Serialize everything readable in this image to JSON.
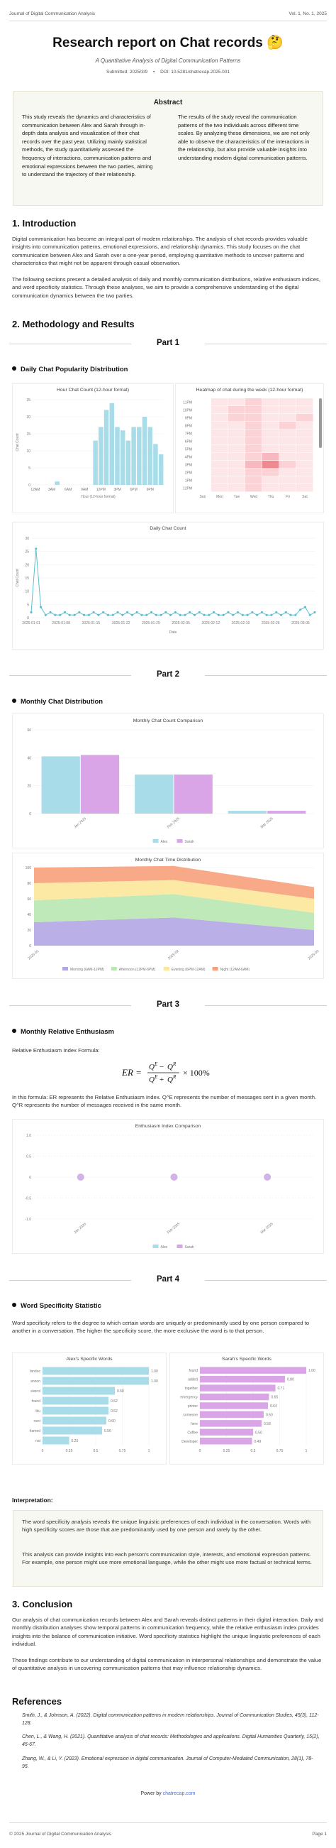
{
  "header": {
    "journal": "Journal of Digital Communication Analysis",
    "volume": "Vol. 1, No. 1, 2025"
  },
  "title": "Research report on Chat records 🤔",
  "subtitle": "A Quantitative Analysis of Digital Communication Patterns",
  "meta": {
    "submitted": "Submitted: 2025/3/9",
    "doi": "DOI: 10.5281/chatrecap.2025.001"
  },
  "abstract": {
    "heading": "Abstract",
    "left": "This study reveals the dynamics and characteristics of communication between Alex and Sarah through in-depth data analysis and visualization of their chat records over the past year. Utilizing mainly statistical methods, the study quantitatively assessed the frequency of interactions, communication patterns and emotional expressions between the two parties, aiming to understand the trajectory of their relationship.",
    "right": "The results of the study reveal the communication patterns of the two individuals across different time scales. By analyzing these dimensions, we are not only able to observe the characteristics of the interactions in the relationship, but also provide valuable insights into understanding modern digital communication patterns."
  },
  "intro": {
    "heading": "1. Introduction",
    "p1": "Digital communication has become an integral part of modern relationships. The analysis of chat records provides valuable insights into communication patterns, emotional expressions, and relationship dynamics. This study focuses on the chat communication between Alex and Sarah over a one-year period, employing quantitative methods to uncover patterns and characteristics that might not be apparent through casual observation.",
    "p2": "The following sections present a detailed analysis of daily and monthly communication distributions, relative enthusiasm indices, and word specificity statistics. Through these analyses, we aim to provide a comprehensive understanding of the digital communication dynamics between the two parties."
  },
  "methods_heading": "2. Methodology and Results",
  "parts": [
    "Part 1",
    "Part 2",
    "Part 3",
    "Part 4"
  ],
  "sections": {
    "daily": "Daily Chat Popularity Distribution",
    "monthly": "Monthly Chat Distribution",
    "enthusiasm": "Monthly Relative Enthusiasm",
    "specificity": "Word Specificity Statistic"
  },
  "chart_data": [
    {
      "type": "bar",
      "title": "Hour Chat Count (12-hour format)",
      "xlabel": "Hour (12-hour format)",
      "ylabel": "Chat Count",
      "ylim": [
        0,
        25
      ],
      "y_ticks": [
        "25",
        "20",
        "15",
        "10",
        "5",
        "0"
      ],
      "x_ticks": [
        "12AM",
        "3AM",
        "6AM",
        "9AM",
        "12PM",
        "3PM",
        "6PM",
        "9PM"
      ],
      "values": [
        0,
        0,
        0,
        0,
        1,
        0,
        0,
        0,
        0,
        0,
        0,
        13,
        17,
        22,
        24,
        17,
        16,
        13,
        17,
        17,
        20,
        17,
        12,
        9
      ],
      "color": "#a8dce8"
    },
    {
      "type": "heatmap",
      "title": "Heatmap of chat during the week (12-hour format)",
      "y_ticks": [
        "11PM",
        "10PM",
        "9PM",
        "8PM",
        "7PM",
        "6PM",
        "5PM",
        "4PM",
        "3PM",
        "2PM",
        "1PM",
        "12PM"
      ],
      "x_ticks": [
        "Sun",
        "Mon",
        "Tue",
        "Wed",
        "Thu",
        "Fri",
        "Sat"
      ],
      "values": [
        [
          0,
          1,
          1,
          2,
          1,
          1,
          1
        ],
        [
          0,
          1,
          2,
          2,
          1,
          1,
          1
        ],
        [
          0,
          1,
          2,
          2,
          1,
          1,
          2
        ],
        [
          0,
          1,
          1,
          2,
          1,
          2,
          1
        ],
        [
          0,
          1,
          1,
          2,
          1,
          1,
          1
        ],
        [
          0,
          1,
          1,
          2,
          1,
          1,
          1
        ],
        [
          0,
          1,
          1,
          2,
          1,
          1,
          1
        ],
        [
          0,
          1,
          1,
          2,
          3,
          1,
          1
        ],
        [
          0,
          1,
          1,
          3,
          4,
          2,
          1
        ],
        [
          0,
          1,
          1,
          2,
          2,
          1,
          1
        ],
        [
          0,
          1,
          1,
          2,
          1,
          1,
          1
        ],
        [
          0,
          1,
          1,
          2,
          1,
          1,
          1
        ]
      ],
      "colors": [
        "#ffffff",
        "#fde6e8",
        "#fbd2d6",
        "#f7b8bf",
        "#ef8990"
      ]
    },
    {
      "type": "line",
      "title": "Daily Chat Count",
      "xlabel": "Date",
      "ylabel": "Chat Count",
      "ylim": [
        0,
        30
      ],
      "y_ticks": [
        "30",
        "25",
        "20",
        "15",
        "10",
        "5",
        "0"
      ],
      "x_ticks": [
        "2025-01-01",
        "2025-01-08",
        "2025-01-15",
        "2025-01-22",
        "2025-01-29",
        "2025-02-05",
        "2025-02-12",
        "2025-02-19",
        "2025-02-26",
        "2025-03-05"
      ],
      "values": [
        2,
        26,
        4,
        1,
        2,
        1,
        1,
        2,
        1,
        1,
        2,
        1,
        1,
        2,
        1,
        2,
        1,
        1,
        2,
        1,
        2,
        1,
        2,
        1,
        1,
        2,
        1,
        1,
        2,
        1,
        2,
        1,
        1,
        2,
        1,
        2,
        1,
        1,
        2,
        1,
        1,
        2,
        1,
        2,
        1,
        1,
        2,
        1,
        2,
        1,
        1,
        2,
        1,
        2,
        1,
        1,
        3,
        4,
        1,
        2
      ],
      "color": "#5bc0d0"
    },
    {
      "type": "bar",
      "title": "Monthly Chat Count Comparison",
      "y_ticks": [
        "60",
        "40",
        "20",
        "0"
      ],
      "categories": [
        "Jan 2025",
        "Feb 2025",
        "Mar 2025"
      ],
      "series": [
        {
          "name": "Alex",
          "values": [
            41,
            28,
            2
          ],
          "color": "#a8dce8"
        },
        {
          "name": "Sarah",
          "values": [
            42,
            28,
            2
          ],
          "color": "#d9a5e6"
        }
      ],
      "ylim": [
        0,
        60
      ]
    },
    {
      "type": "area",
      "title": "Monthly Chat Time Distribution",
      "y_ticks": [
        "100",
        "80",
        "60",
        "40",
        "20",
        "0"
      ],
      "categories": [
        "2025-01",
        "2025-02",
        "2025-03"
      ],
      "series": [
        {
          "name": "Morning (6AM-12PM)",
          "values": [
            30,
            36,
            20
          ],
          "color": "#b3a6e4"
        },
        {
          "name": "Afternoon (12PM-6PM)",
          "values": [
            28,
            30,
            22
          ],
          "color": "#b9e7b3"
        },
        {
          "name": "Evening (6PM-12AM)",
          "values": [
            22,
            18,
            18
          ],
          "color": "#fce79a"
        },
        {
          "name": "Night (12AM-6AM)",
          "values": [
            20,
            18,
            15
          ],
          "color": "#f7a07a"
        }
      ],
      "ylim": [
        0,
        100
      ]
    },
    {
      "type": "scatter",
      "title": "Enthusiasm Index Comparison",
      "y_ticks": [
        "1.0",
        "0.5",
        "0",
        "-0.5",
        "-1.0"
      ],
      "categories": [
        "Jan 2025",
        "Feb 2025",
        "Mar 2025"
      ],
      "series": [
        {
          "name": "Alex",
          "values": [
            0,
            0,
            0
          ],
          "color": "#a8dce8"
        },
        {
          "name": "Sarah",
          "values": [
            0,
            0,
            0
          ],
          "color": "#d9a5e6"
        }
      ],
      "ylim": [
        -1,
        1
      ]
    },
    {
      "type": "bar",
      "title": "Alex's Specific Words",
      "x_ticks": [
        "0",
        "0.25",
        "0.5",
        "0.75",
        "1"
      ],
      "categories": [
        "fandoc",
        "annon",
        "starrol",
        "found",
        "blu",
        "next",
        "framed",
        "nat"
      ],
      "values": [
        1.0,
        1.0,
        0.68,
        0.62,
        0.62,
        0.6,
        0.56,
        0.25
      ],
      "labels": [
        "1.00",
        "1.00",
        "0.68",
        "0.62",
        "0.62",
        "0.60",
        "0.56",
        "0.25"
      ],
      "color": "#a8dce8"
    },
    {
      "type": "bar",
      "title": "Sarah's Specific Words",
      "x_ticks": [
        "0",
        "0.25",
        "0.5",
        "0.75",
        "1"
      ],
      "categories": [
        "found",
        "added",
        "together",
        "emergency",
        "printer",
        "someone",
        "here",
        "Coffee",
        "Developer"
      ],
      "values": [
        1.0,
        0.8,
        0.71,
        0.65,
        0.64,
        0.6,
        0.58,
        0.5,
        0.49
      ],
      "labels": [
        "1.00",
        "0.80",
        "0.71",
        "0.65",
        "0.64",
        "0.60",
        "0.58",
        "0.50",
        "0.49"
      ],
      "color": "#d9a5e6"
    }
  ],
  "enthusiasm": {
    "formula_label": "Relative Enthusiasm Index Formula:",
    "formula_text": "ER = (Q^E − Q^R)/(Q^E + Q^R) × 100%",
    "explain": "In this formula: ER represents the Relative Enthusiasm Index. Q^E represents the number of messages sent in a given month. Q^R represents the number of messages received in the same month."
  },
  "specificity": {
    "p": "Word specificity refers to the degree to which certain words are uniquely or predominantly used by one person compared to another in a conversation. The higher the specificity score, the more exclusive the word is to that person.",
    "interp_label": "Interpretation:",
    "interp_p1": "The word specificity analysis reveals the unique linguistic preferences of each individual in the conversation. Words with high specificity scores are those that are predominantly used by one person and rarely by the other.",
    "interp_p2": "This analysis can provide insights into each person's communication style, interests, and emotional expression patterns. For example, one person might use more emotional language, while the other might use more factual or technical terms."
  },
  "conclusion": {
    "heading": "3. Conclusion",
    "p1": "Our analysis of chat communication records between Alex and Sarah reveals distinct patterns in their digital interaction. Daily and monthly distribution analyses show temporal patterns in communication frequency, while the relative enthusiasm index provides insights into the balance of communication initiative. Word specificity statistics highlight the unique linguistic preferences of each individual.",
    "p2": "These findings contribute to our understanding of digital communication in interpersonal relationships and demonstrate the value of quantitative analysis in uncovering communication patterns that may influence relationship dynamics."
  },
  "references": {
    "heading": "References",
    "items": [
      "Smith, J., & Johnson, A. (2022). Digital communication patterns in modern relationships. Journal of Communication Studies, 45(3), 112-128.",
      "Chen, L., & Wang, H. (2021). Quantitative analysis of chat records: Methodologies and applications. Digital Humanities Quarterly, 15(2), 45-67.",
      "Zhang, W., & Li, Y. (2023). Emotional expression in digital communication. Journal of Computer-Mediated Communication, 28(1), 78-95."
    ]
  },
  "powered": {
    "prefix": "Power by ",
    "link": "chatrecap.com"
  },
  "footer": {
    "left": "© 2025 Journal of Digital Communication Analysis",
    "right": "Page 1"
  }
}
